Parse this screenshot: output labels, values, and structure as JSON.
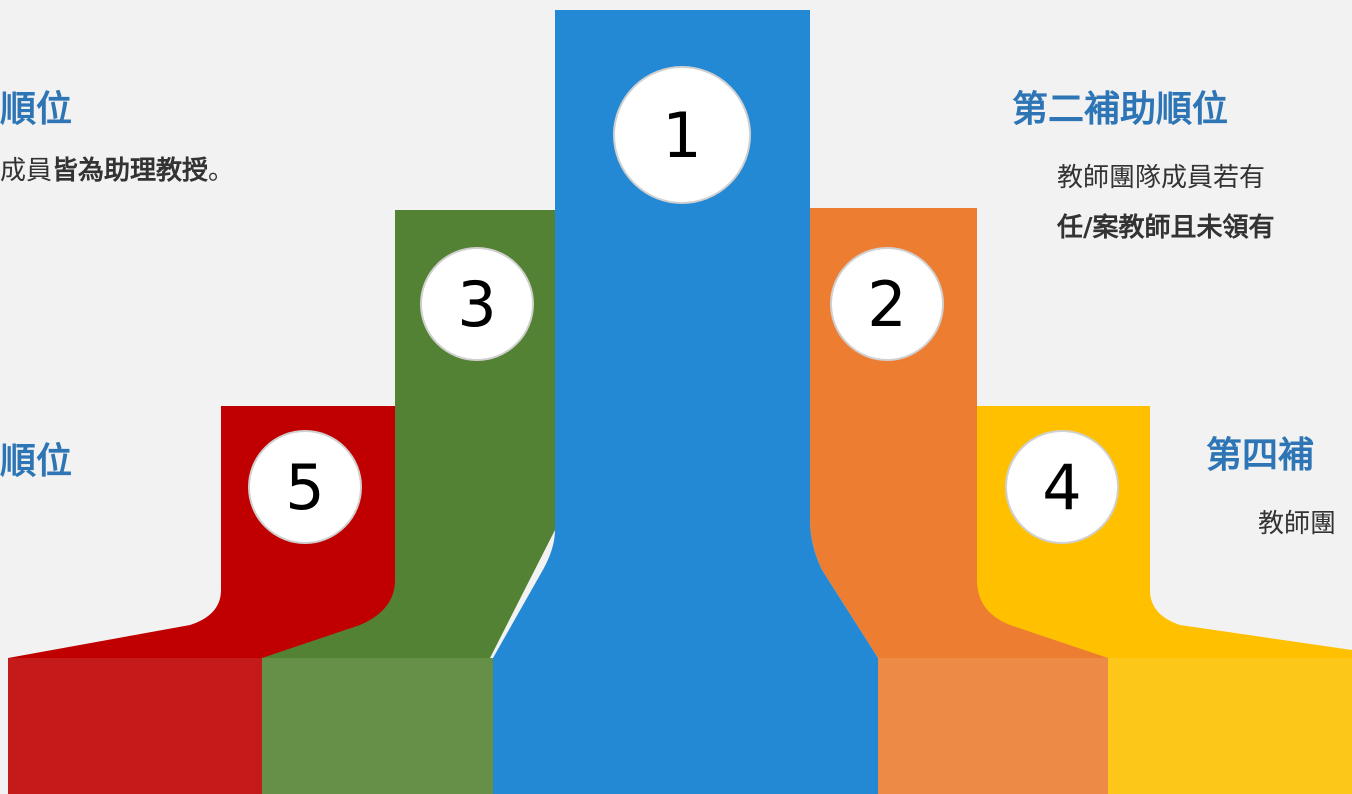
{
  "ranks": [
    {
      "number": "1",
      "color": "#2489d5"
    },
    {
      "number": "2",
      "color": "#ed7d31"
    },
    {
      "number": "3",
      "color": "#548235"
    },
    {
      "number": "4",
      "color": "#ffc000"
    },
    {
      "number": "5",
      "color": "#c00000"
    }
  ],
  "base_colors": {
    "rank5": "#c41a1a",
    "rank3": "#668f47",
    "rank1": "#2489d5",
    "rank2": "#ed8a46",
    "rank4": "#fdc71a"
  },
  "text": {
    "top_left_heading": "順位",
    "top_left_body_prefix": "成員",
    "top_left_body_bold": "皆為助理教授",
    "top_left_body_suffix": "。",
    "bottom_left_heading": "順位",
    "second_heading": "第二補助順位",
    "second_body_line1": "教師團隊成員若有",
    "second_body_line2_bold": "任/案教師且未領有",
    "fourth_heading": "第四補",
    "fourth_body": "教師團"
  }
}
